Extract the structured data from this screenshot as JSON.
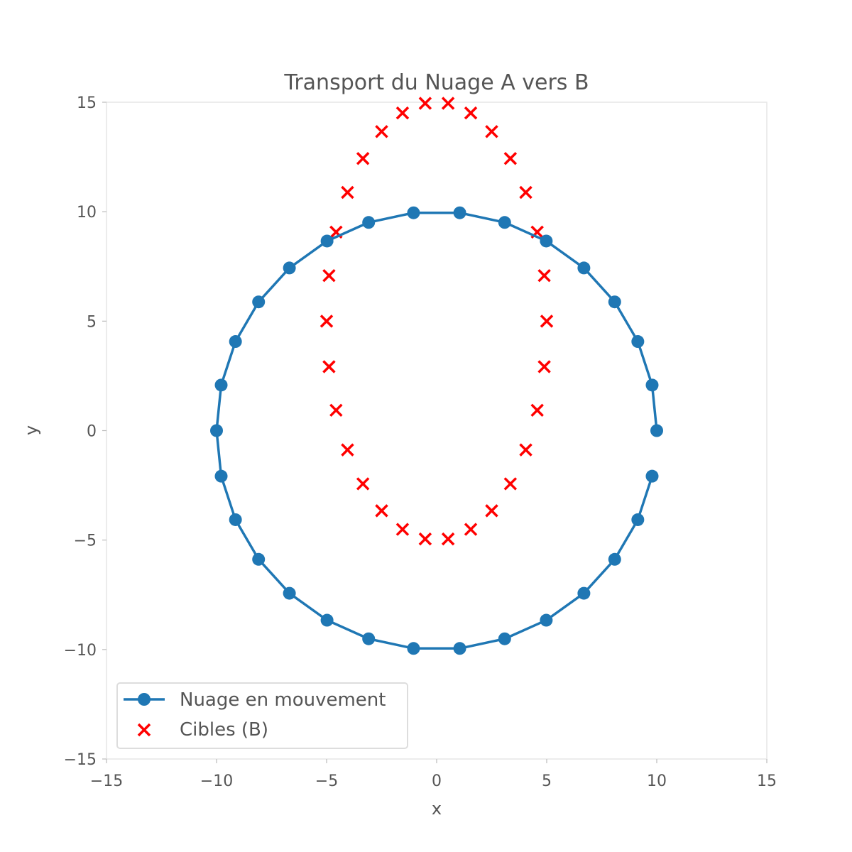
{
  "chart_data": {
    "type": "scatter",
    "title": "Transport du Nuage A vers B",
    "xlabel": "x",
    "ylabel": "y",
    "xlim": [
      -15,
      15
    ],
    "ylim": [
      -15,
      15
    ],
    "xticks": [
      -15,
      -10,
      -5,
      0,
      5,
      10,
      15
    ],
    "yticks": [
      -15,
      -10,
      -5,
      0,
      5,
      10,
      15
    ],
    "xtick_labels": [
      "−15",
      "−10",
      "−5",
      "0",
      "5",
      "10",
      "15"
    ],
    "ytick_labels": [
      "−15",
      "−10",
      "−5",
      "0",
      "5",
      "10",
      "15"
    ],
    "grid": false,
    "legend_position": "lower-left",
    "series": [
      {
        "name": "Nuage en mouvement",
        "kind": "line-markers",
        "marker": "circle",
        "color": "#1f77b4",
        "x": [
          10.0,
          9.79,
          9.14,
          8.09,
          6.69,
          4.98,
          3.09,
          1.05,
          -1.05,
          -3.09,
          -4.98,
          -6.69,
          -8.09,
          -9.14,
          -9.79,
          -10.0,
          -9.79,
          -9.14,
          -8.09,
          -6.69,
          -4.98,
          -3.09,
          -1.05,
          1.05,
          3.09,
          4.98,
          6.69,
          8.09,
          9.14,
          9.79
        ],
        "y": [
          0.0,
          2.08,
          4.07,
          5.88,
          7.43,
          8.66,
          9.51,
          9.95,
          9.95,
          9.51,
          8.66,
          7.43,
          5.88,
          4.07,
          2.08,
          0.0,
          -2.08,
          -4.07,
          -5.88,
          -7.43,
          -8.66,
          -9.51,
          -9.95,
          -9.95,
          -9.51,
          -8.66,
          -7.43,
          -5.88,
          -4.07,
          -2.08
        ]
      },
      {
        "name": "Cibles (B)",
        "kind": "scatter",
        "marker": "x",
        "color": "#ff0000",
        "x": [
          15.0,
          14.89,
          14.57,
          14.05,
          13.35,
          12.5,
          11.55,
          10.52,
          9.48,
          8.45,
          7.5,
          6.65,
          5.95,
          5.43,
          5.11,
          5.0,
          5.11,
          5.43,
          5.95,
          6.65,
          7.5,
          8.45,
          9.48,
          10.52,
          11.55,
          12.5,
          13.35,
          14.05,
          14.57,
          14.89
        ],
        "y": [
          5.0,
          7.08,
          9.07,
          10.88,
          12.43,
          13.66,
          14.51,
          14.95,
          14.95,
          14.51,
          13.66,
          12.43,
          10.88,
          9.07,
          7.08,
          5.0,
          2.92,
          0.93,
          -0.88,
          -2.43,
          -3.66,
          -4.51,
          -4.95,
          -4.95,
          -4.51,
          -3.66,
          -2.43,
          -0.88,
          0.93,
          2.92
        ],
        "x_offset": -10.0
      }
    ]
  }
}
